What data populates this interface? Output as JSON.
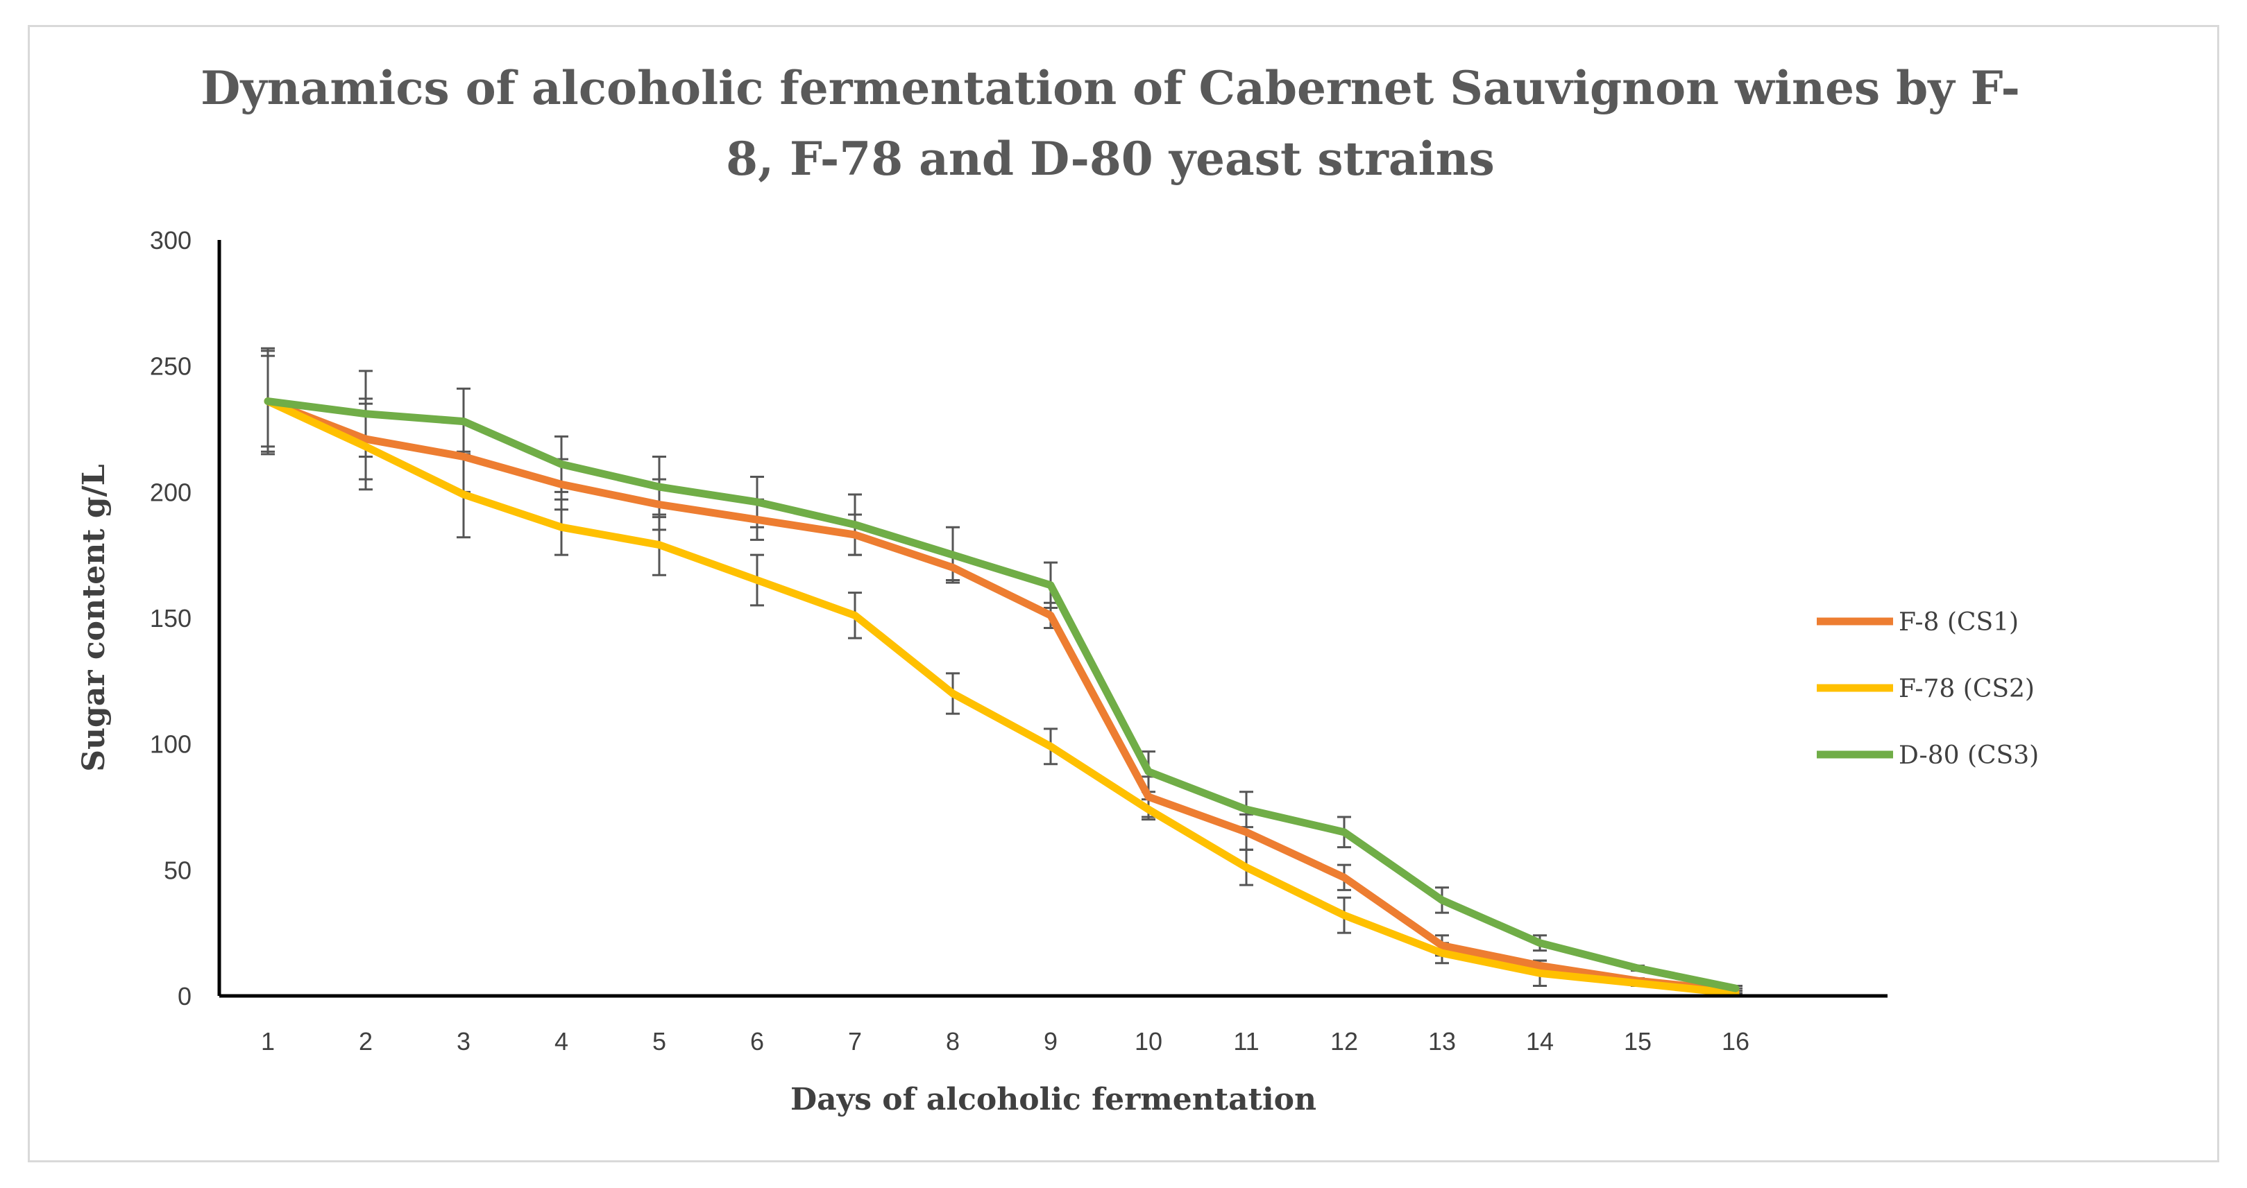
{
  "chart_data": {
    "type": "line",
    "title_lines": [
      "Dynamics of alcoholic fermentation of Cabernet Sauvignon wines by F-",
      "8, F-78 and D-80 yeast strains"
    ],
    "xlabel": "Days of alcoholic fermentation",
    "ylabel": "Sugar content g/L",
    "ylim": [
      0,
      300
    ],
    "yticks": [
      0,
      50,
      100,
      150,
      200,
      250,
      300
    ],
    "categories": [
      "1",
      "2",
      "3",
      "4",
      "5",
      "6",
      "7",
      "8",
      "9",
      "10",
      "11",
      "12",
      "13",
      "14",
      "15",
      "16"
    ],
    "grid": false,
    "legend_position": "right",
    "series": [
      {
        "name": "F-8 (CS1)",
        "color": "#ED7D31",
        "values": [
          236,
          221,
          214,
          203,
          195,
          189,
          183,
          170,
          151,
          79,
          65,
          47,
          20,
          12,
          6,
          2
        ],
        "errors": [
          21,
          16,
          14,
          10,
          10,
          8,
          8,
          5,
          5,
          8,
          7,
          5,
          4,
          2,
          1,
          1
        ]
      },
      {
        "name": "F-78 (CS2)",
        "color": "#FFC000",
        "values": [
          236,
          218,
          199,
          186,
          179,
          165,
          151,
          120,
          99,
          74,
          51,
          32,
          17,
          9,
          5,
          1
        ],
        "errors": [
          20,
          17,
          17,
          11,
          12,
          10,
          9,
          8,
          7,
          4,
          7,
          7,
          4,
          5,
          1,
          1
        ]
      },
      {
        "name": "D-80 (CS3)",
        "color": "#70AD47",
        "values": [
          236,
          231,
          228,
          211,
          202,
          196,
          187,
          175,
          163,
          89,
          74,
          65,
          38,
          21,
          11,
          3
        ],
        "errors": [
          18,
          17,
          13,
          11,
          12,
          10,
          12,
          11,
          9,
          8,
          7,
          6,
          5,
          3,
          1,
          1
        ]
      }
    ]
  }
}
